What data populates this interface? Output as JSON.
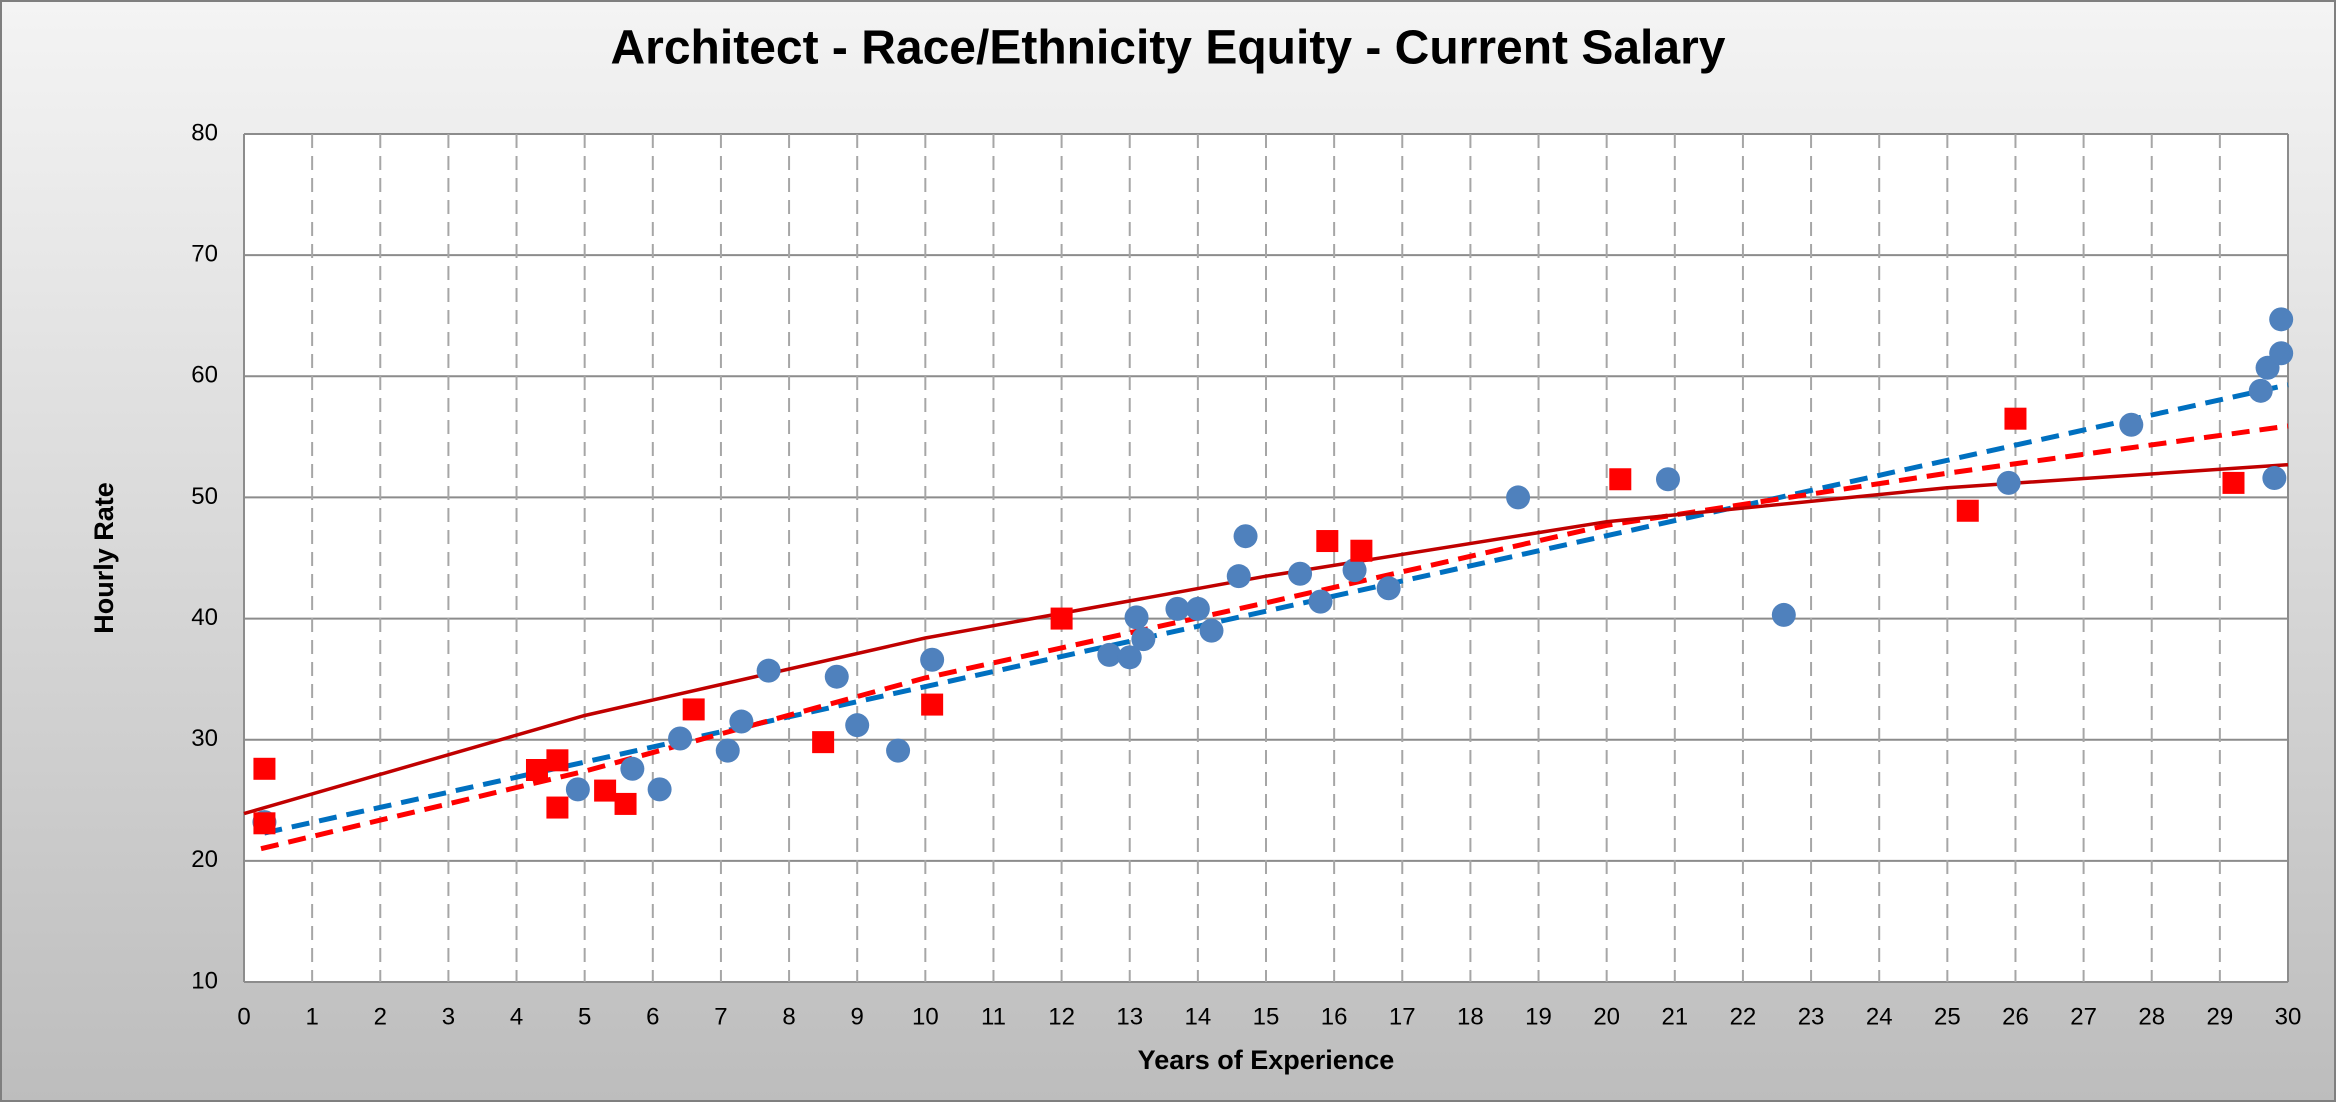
{
  "chart_data": {
    "type": "scatter",
    "title": "Architect - Race/Ethnicity Equity - Current Salary",
    "x_label": "Years of Experience",
    "y_label": "Hourly Rate",
    "xlim": [
      0,
      30
    ],
    "ylim": [
      10,
      80
    ],
    "xticks": [
      0,
      1,
      2,
      3,
      4,
      5,
      6,
      7,
      8,
      9,
      10,
      11,
      12,
      13,
      14,
      15,
      16,
      17,
      18,
      19,
      20,
      21,
      22,
      23,
      24,
      25,
      26,
      27,
      28,
      29,
      30
    ],
    "yticks": [
      10,
      20,
      30,
      40,
      50,
      60,
      70,
      80
    ],
    "grid": true,
    "series": [
      {
        "color": "#4f81bd",
        "marker": "circle",
        "x": [
          0.3,
          4.9,
          5.7,
          6.1,
          6.4,
          7.1,
          7.3,
          7.7,
          8.7,
          9.0,
          9.6,
          10.1,
          12.7,
          13.0,
          13.1,
          13.2,
          13.7,
          14.0,
          14.2,
          14.6,
          14.7,
          15.5,
          15.8,
          16.3,
          16.8,
          18.7,
          20.9,
          22.6,
          25.9,
          27.7,
          29.6,
          29.7,
          29.9,
          29.9,
          29.8
        ],
        "values": [
          23.2,
          25.9,
          27.6,
          25.9,
          30.1,
          29.1,
          31.5,
          35.7,
          35.2,
          31.2,
          29.1,
          36.6,
          37.0,
          36.8,
          40.1,
          38.3,
          40.8,
          40.8,
          39.0,
          43.5,
          46.8,
          43.7,
          41.4,
          44.0,
          42.5,
          50.0,
          51.5,
          40.3,
          51.2,
          56.0,
          58.8,
          60.7,
          64.7,
          61.9,
          51.6
        ]
      },
      {
        "color": "#ff0000",
        "marker": "square",
        "x": [
          0.3,
          0.3,
          4.3,
          4.6,
          4.6,
          5.3,
          5.6,
          6.6,
          8.5,
          10.1,
          12.0,
          15.9,
          16.4,
          20.2,
          25.3,
          26.0,
          29.2
        ],
        "values": [
          27.6,
          23.1,
          27.5,
          28.3,
          24.4,
          25.8,
          24.7,
          32.5,
          29.8,
          32.9,
          40.0,
          46.4,
          45.6,
          51.5,
          48.9,
          56.5,
          51.2
        ]
      }
    ],
    "trendlines": [
      {
        "color": "#0070c0",
        "dashed": true,
        "x": [
          0.3,
          30
        ],
        "values": [
          22.3,
          59.3
        ]
      },
      {
        "color": "#ff0000",
        "dashed": true,
        "x": [
          0.25,
          5,
          10,
          15,
          20,
          25,
          30
        ],
        "values": [
          21.0,
          27.4,
          35.1,
          41.3,
          47.7,
          52.0,
          55.9
        ]
      },
      {
        "color": "#c00000",
        "dashed": false,
        "x": [
          0,
          5,
          10,
          15,
          20,
          25,
          30
        ],
        "values": [
          23.9,
          32.0,
          38.4,
          43.5,
          48.0,
          50.8,
          52.7
        ]
      }
    ]
  }
}
